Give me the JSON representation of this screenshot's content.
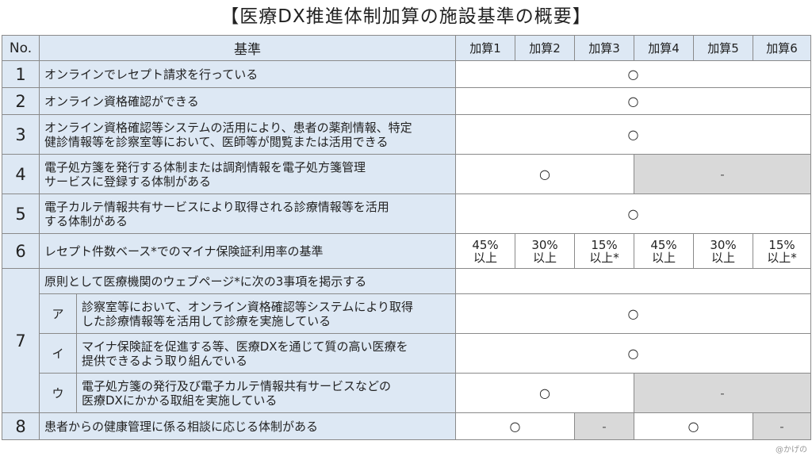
{
  "title": "【医療DX推進体制加算の施設基準の概要】",
  "header": {
    "no": "No.",
    "criteria": "基準",
    "kasan": [
      "加算1",
      "加算2",
      "加算3",
      "加算4",
      "加算5",
      "加算6"
    ]
  },
  "rows": [
    {
      "no": "1",
      "text": "オンラインでレセプト請求を行っている",
      "mark": "○"
    },
    {
      "no": "2",
      "text": "オンライン資格確認ができる",
      "mark": "○"
    },
    {
      "no": "3",
      "line1": "オンライン資格確認等システムの活用により、患者の薬剤情報、特定",
      "line2": "健診情報等を診察室等において、医師等が閲覧または活用できる",
      "mark": "○"
    },
    {
      "no": "4",
      "line1": "電子処方箋を発行する体制または調剤情報を電子処方箋管理",
      "line2": "サービスに登録する体制がある",
      "mark": "○",
      "gray": "-"
    },
    {
      "no": "5",
      "line1": "電子カルテ情報共有サービスにより取得される診療情報等を活用",
      "line2": "する体制がある",
      "mark": "○"
    },
    {
      "no": "6",
      "text": "レセプト件数ベース*でのマイナ保険証利用率の基準",
      "pct": [
        {
          "v": "45%",
          "s": "以上"
        },
        {
          "v": "30%",
          "s": "以上"
        },
        {
          "v": "15%",
          "s": "以上*"
        },
        {
          "v": "45%",
          "s": "以上"
        },
        {
          "v": "30%",
          "s": "以上"
        },
        {
          "v": "15%",
          "s": "以上*"
        }
      ]
    },
    {
      "no": "7",
      "text": "原則として医療機関のウェブページ*に次の3事項を掲示する",
      "subs": [
        {
          "label": "ア",
          "line1": "診察室等において、オンライン資格確認等システムにより取得",
          "line2": "した診療情報等を活用して診療を実施している",
          "mark": "○"
        },
        {
          "label": "イ",
          "line1": "マイナ保険証を促進する等、医療DXを通じて質の高い医療を",
          "line2": "提供できるよう取り組んでいる",
          "mark": "○"
        },
        {
          "label": "ウ",
          "line1": "電子処方箋の発行及び電子カルテ情報共有サービスなどの",
          "line2": "医療DXにかかる取組を実施している",
          "mark": "○",
          "gray": "-"
        }
      ]
    },
    {
      "no": "8",
      "text": "患者からの健康管理に係る相談に応じる体制がある",
      "cells": [
        "○",
        "-",
        "○",
        "-"
      ]
    }
  ],
  "credit": "@かげの"
}
